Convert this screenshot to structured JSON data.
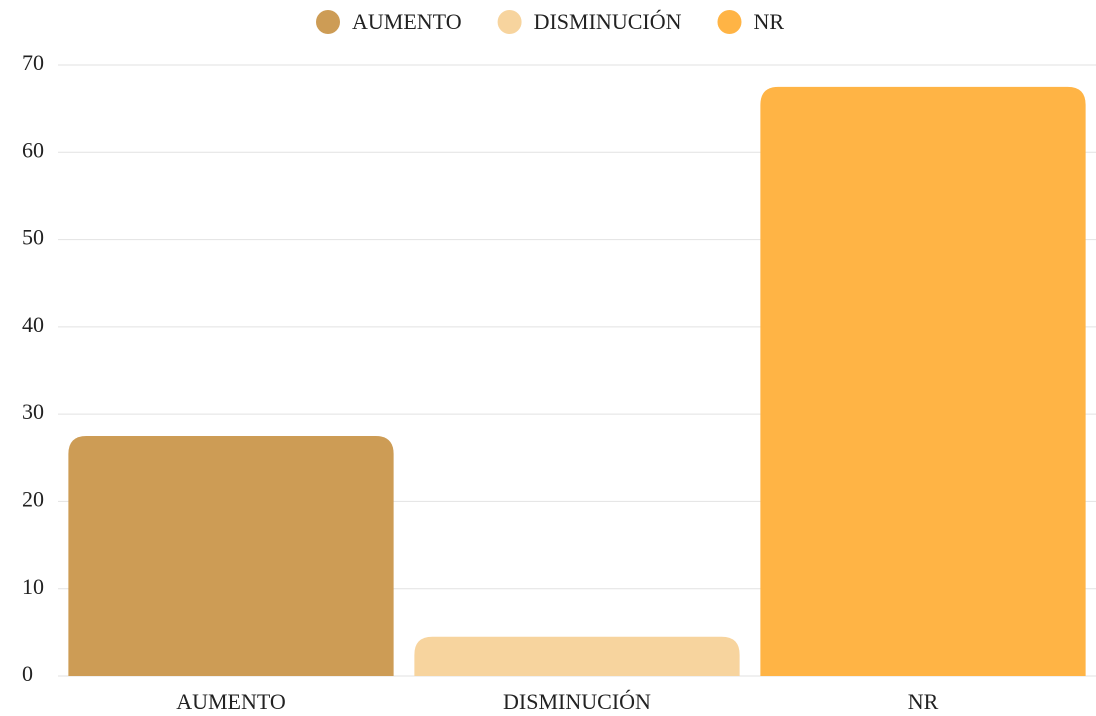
{
  "chart_data": {
    "type": "bar",
    "categories": [
      "AUMENTO",
      "DISMINUCIÓN",
      "NR"
    ],
    "values": [
      27.5,
      4.5,
      67.5
    ],
    "colors": [
      "#cd9c55",
      "#f7d49e",
      "#ffb445"
    ],
    "ylim": [
      0,
      70
    ],
    "yticks": [
      0,
      10,
      20,
      30,
      40,
      50,
      60,
      70
    ],
    "grid": true,
    "legend": "top"
  }
}
